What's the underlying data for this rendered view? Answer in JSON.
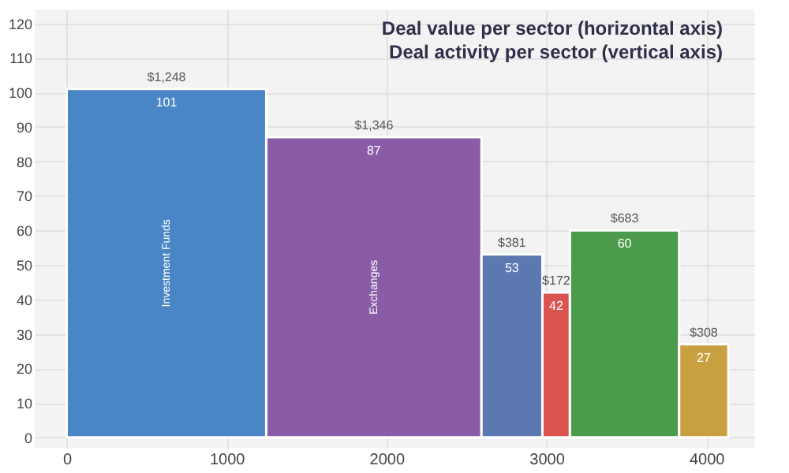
{
  "chart_data": {
    "type": "histogram",
    "title": "Deal value per sector (horizontal axis)",
    "subtitle": "Deal activity per sector (vertical axis)",
    "categories": [
      "Investment Funds",
      "Exchanges",
      null,
      null,
      null,
      null
    ],
    "bins": [
      0,
      1248,
      2594,
      2975,
      3147,
      3830,
      4138
    ],
    "values": [
      101,
      87,
      53,
      42,
      60,
      27
    ],
    "colors": [
      "#4a86c5",
      "#8a5ca8",
      "#5b78b0",
      "#d9534f",
      "#4c9a4c",
      "#c9a040"
    ],
    "data_labels": true,
    "annotations": [
      {
        "text": "$1,248",
        "x": 624,
        "y": 101
      },
      {
        "text": "$1,346",
        "x": 1921,
        "y": 87
      },
      {
        "text": "$381",
        "x": 2784.5,
        "y": 53
      },
      {
        "text": "$172",
        "x": 3061,
        "y": 42
      },
      {
        "text": "$683",
        "x": 3488.5,
        "y": 60
      },
      {
        "text": "$308",
        "x": 3984,
        "y": 27
      }
    ],
    "xlim": [
      -200,
      4300
    ],
    "xticks": [
      0,
      1000,
      2000,
      3000,
      4000
    ],
    "ylim": [
      -3,
      124
    ],
    "yticks": [
      0,
      10,
      20,
      30,
      40,
      50,
      60,
      70,
      80,
      90,
      100,
      110,
      120
    ],
    "grid": true
  }
}
